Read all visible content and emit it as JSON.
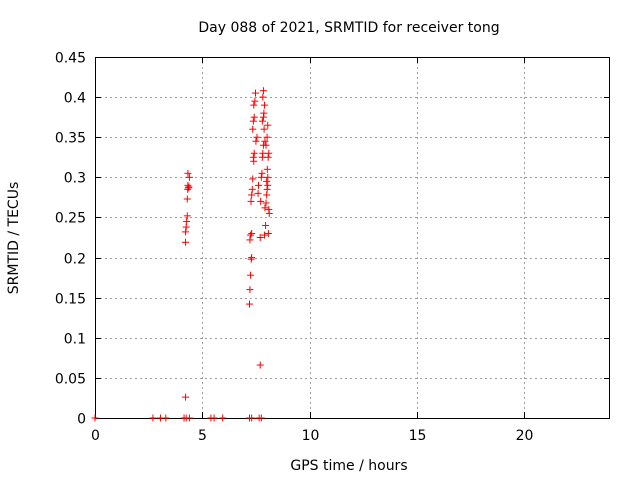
{
  "chart_data": {
    "type": "scatter",
    "title": "Day 088 of 2021, SRMTID for receiver tong",
    "xlabel": "GPS time / hours",
    "ylabel": "SRMTID / TECUs",
    "xlim": [
      0,
      24
    ],
    "ylim": [
      0,
      0.45
    ],
    "xticks": [
      0,
      5,
      10,
      15,
      20
    ],
    "xtick_labels": [
      "0",
      "5",
      "10",
      "15",
      "20"
    ],
    "yticks": [
      0,
      0.05,
      0.1,
      0.15,
      0.2,
      0.25,
      0.3,
      0.35,
      0.4,
      0.45
    ],
    "ytick_labels": [
      "0",
      "0.05",
      "0.1",
      "0.15",
      "0.2",
      "0.25",
      "0.3",
      "0.35",
      "0.4",
      "0.45"
    ],
    "grid": true,
    "marker": "+",
    "color": "#ff0000",
    "series": [
      {
        "name": "SRMTID",
        "points": [
          [
            0.0,
            0
          ],
          [
            2.7,
            0
          ],
          [
            3.05,
            0
          ],
          [
            3.3,
            0
          ],
          [
            4.15,
            0
          ],
          [
            4.25,
            0
          ],
          [
            4.4,
            0
          ],
          [
            5.4,
            0
          ],
          [
            5.55,
            0
          ],
          [
            5.95,
            0
          ],
          [
            7.2,
            0
          ],
          [
            7.3,
            0
          ],
          [
            7.65,
            0
          ],
          [
            7.75,
            0
          ],
          [
            4.22,
            0.026
          ],
          [
            4.22,
            0.219
          ],
          [
            4.22,
            0.232
          ],
          [
            4.25,
            0.238
          ],
          [
            4.27,
            0.245
          ],
          [
            4.3,
            0.252
          ],
          [
            4.3,
            0.273
          ],
          [
            4.32,
            0.285
          ],
          [
            4.33,
            0.29
          ],
          [
            4.35,
            0.287
          ],
          [
            4.4,
            0.3
          ],
          [
            4.33,
            0.305
          ],
          [
            4.38,
            0.288
          ],
          [
            7.2,
            0.142
          ],
          [
            7.22,
            0.16
          ],
          [
            7.25,
            0.178
          ],
          [
            7.28,
            0.198
          ],
          [
            7.3,
            0.2
          ],
          [
            7.22,
            0.222
          ],
          [
            7.25,
            0.228
          ],
          [
            7.3,
            0.23
          ],
          [
            7.27,
            0.27
          ],
          [
            7.3,
            0.278
          ],
          [
            7.33,
            0.285
          ],
          [
            7.35,
            0.298
          ],
          [
            7.4,
            0.32
          ],
          [
            7.38,
            0.325
          ],
          [
            7.42,
            0.33
          ],
          [
            7.35,
            0.36
          ],
          [
            7.38,
            0.37
          ],
          [
            7.42,
            0.375
          ],
          [
            7.4,
            0.39
          ],
          [
            7.45,
            0.395
          ],
          [
            7.48,
            0.405
          ],
          [
            7.5,
            0.345
          ],
          [
            7.55,
            0.35
          ],
          [
            7.6,
            0.28
          ],
          [
            7.62,
            0.29
          ],
          [
            7.7,
            0.066
          ],
          [
            7.7,
            0.225
          ],
          [
            7.72,
            0.27
          ],
          [
            7.75,
            0.3
          ],
          [
            7.78,
            0.305
          ],
          [
            7.8,
            0.325
          ],
          [
            7.82,
            0.33
          ],
          [
            7.85,
            0.34
          ],
          [
            7.88,
            0.36
          ],
          [
            7.8,
            0.37
          ],
          [
            7.85,
            0.375
          ],
          [
            7.87,
            0.38
          ],
          [
            7.9,
            0.39
          ],
          [
            7.82,
            0.4
          ],
          [
            7.85,
            0.408
          ],
          [
            7.92,
            0.345
          ],
          [
            7.9,
            0.228
          ],
          [
            7.95,
            0.24
          ],
          [
            7.92,
            0.262
          ],
          [
            7.97,
            0.268
          ],
          [
            8.0,
            0.278
          ],
          [
            8.02,
            0.285
          ],
          [
            8.05,
            0.29
          ],
          [
            8.0,
            0.295
          ],
          [
            8.05,
            0.3
          ],
          [
            8.03,
            0.31
          ],
          [
            8.07,
            0.325
          ],
          [
            8.1,
            0.33
          ],
          [
            8.05,
            0.365
          ],
          [
            8.1,
            0.26
          ],
          [
            8.12,
            0.255
          ],
          [
            8.08,
            0.23
          ],
          [
            7.97,
            0.34
          ],
          [
            8.02,
            0.35
          ]
        ]
      }
    ]
  }
}
